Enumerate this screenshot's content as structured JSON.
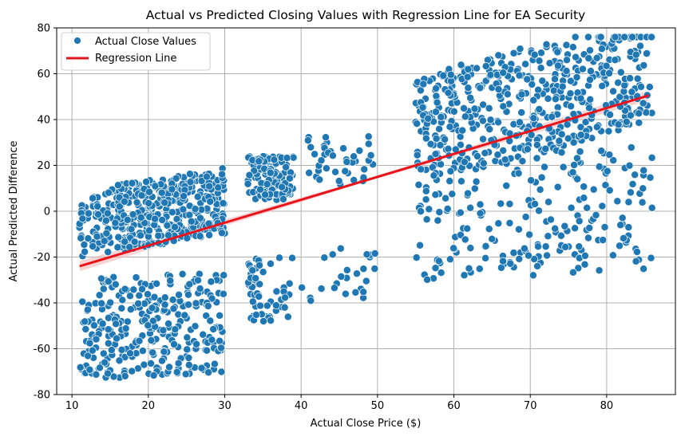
{
  "chart_data": {
    "type": "scatter",
    "title": "Actual vs Predicted Closing Values with Regression Line for EA Security",
    "xlabel": "Actual Close Price ($)",
    "ylabel": "Actual Predicted Difference",
    "xlim": [
      8.0,
      89.0
    ],
    "ylim": [
      -80,
      80
    ],
    "xticks": [
      10,
      20,
      30,
      40,
      50,
      60,
      70,
      80
    ],
    "yticks": [
      -80,
      -60,
      -40,
      -20,
      0,
      20,
      40,
      60,
      80
    ],
    "grid": true,
    "legend_position": "top-left",
    "colors": {
      "points": "#1f77b4",
      "regression": "#e8141a",
      "band": "#f4b6b8"
    },
    "series": [
      {
        "name": "Actual Close Values",
        "kind": "scatter",
        "clusters": [
          {
            "x": [
              11,
              30
            ],
            "y": [
              -15,
              14
            ],
            "n": 430,
            "trend": 0.55
          },
          {
            "x": [
              11,
              30
            ],
            "y": [
              -72,
              -28
            ],
            "n": 300,
            "trend": 0.15
          },
          {
            "x": [
              33,
              39
            ],
            "y": [
              5,
              24
            ],
            "n": 120
          },
          {
            "x": [
              33,
              39
            ],
            "y": [
              -48,
              -20
            ],
            "n": 60
          },
          {
            "x": [
              40,
              50
            ],
            "y": [
              10,
              33
            ],
            "n": 40
          },
          {
            "x": [
              40,
              50
            ],
            "y": [
              -40,
              -15
            ],
            "n": 25
          },
          {
            "x": [
              55,
              86
            ],
            "y": [
              25,
              73
            ],
            "n": 520,
            "trend": 0.9
          },
          {
            "x": [
              55,
              86
            ],
            "y": [
              -28,
              28
            ],
            "n": 220,
            "trend": 0.2
          }
        ]
      },
      {
        "name": "Regression Line",
        "kind": "line",
        "x": [
          11,
          85.5
        ],
        "y": [
          -24,
          50.5
        ]
      }
    ]
  }
}
